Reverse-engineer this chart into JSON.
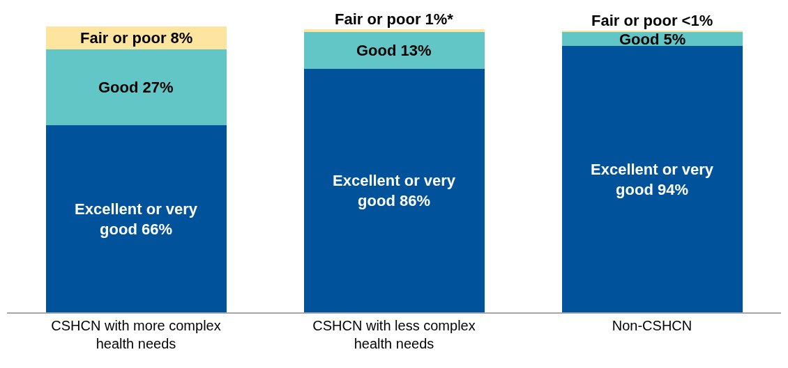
{
  "chart_data": {
    "type": "bar",
    "stacked": true,
    "categories": [
      "CSHCN with more complex health needs",
      "CSHCN with less complex health needs",
      "Non-CSHCN"
    ],
    "series": [
      {
        "color": "#00539b",
        "values": [
          66,
          86,
          94
        ],
        "value_labels": [
          "Excellent or very good 66%",
          "Excellent or very good 86%",
          "Excellent or very good 94%"
        ]
      },
      {
        "color": "#62c6c6",
        "values": [
          27,
          13,
          5
        ],
        "value_labels": [
          "Good 27%",
          "Good 13%",
          "Good 5%"
        ]
      },
      {
        "color": "#fde5a0",
        "values": [
          8,
          1,
          0.5
        ],
        "value_labels": [
          "Fair or poor 8%",
          "Fair or poor 1%*",
          "Fair or poor <1%"
        ]
      }
    ],
    "tick_labels": "x"
  }
}
